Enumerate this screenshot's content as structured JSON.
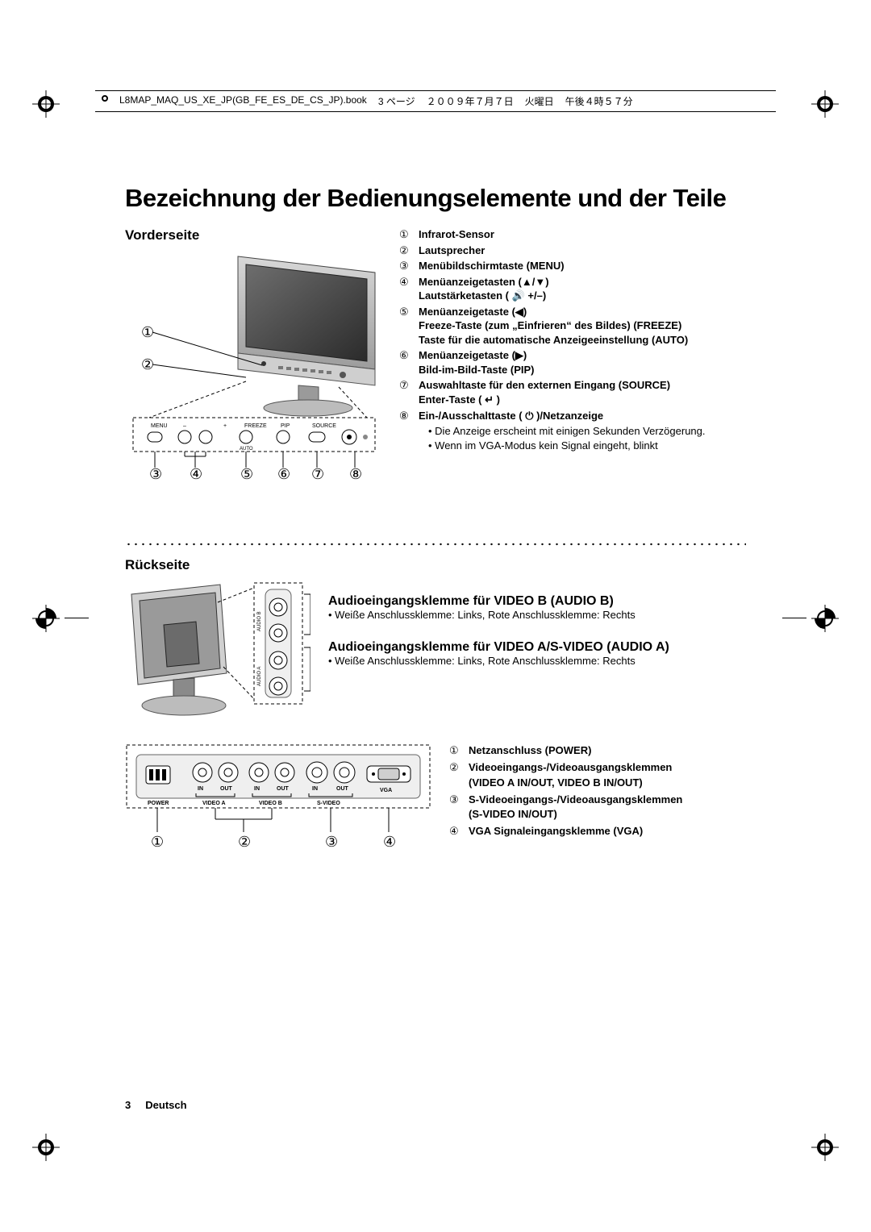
{
  "runhead": {
    "file": "L8MAP_MAQ_US_XE_JP(GB_FE_ES_DE_CS_JP).book",
    "page": "3 ページ",
    "date": "２００９年７月７日",
    "weekday": "火曜日",
    "time": "午後４時５７分"
  },
  "title": "Bezeichnung der Bedienungselemente und der Teile",
  "front": {
    "heading": "Vorderseite",
    "buttons": {
      "menu": "MENU",
      "minus": "–",
      "vol": "",
      "plus": "+",
      "freeze": "FREEZE",
      "pip": "PIP",
      "source": "SOURCE",
      "auto": "AUTO"
    },
    "callout_numbers": [
      "①",
      "②",
      "③",
      "④",
      "⑤",
      "⑥",
      "⑦",
      "⑧"
    ],
    "items": [
      {
        "num": "①",
        "lines": [
          "<b>Infrarot-Sensor</b>"
        ]
      },
      {
        "num": "②",
        "lines": [
          "<b>Lautsprecher</b>"
        ]
      },
      {
        "num": "③",
        "lines": [
          "<b>Menübildschirmtaste (MENU)</b>"
        ]
      },
      {
        "num": "④",
        "lines": [
          "<b>Menüanzeigetasten (▲/▼)</b>",
          "<b>Lautstärketasten ( 🔊 +/–)</b>"
        ]
      },
      {
        "num": "⑤",
        "lines": [
          "<b>Menüanzeigetaste (◀)</b>",
          "<b>Freeze-Taste (zum „Einfrieren“ des Bildes) (FREEZE)</b>",
          "<b>Taste für die automatische Anzeigeeinstellung (AUTO)</b>"
        ]
      },
      {
        "num": "⑥",
        "lines": [
          "<b>Menüanzeigetaste (▶)</b>",
          "<b>Bild-im-Bild-Taste (PIP)</b>"
        ]
      },
      {
        "num": "⑦",
        "lines": [
          "<b>Auswahltaste für den externen Eingang (SOURCE)</b>",
          "<b>Enter-Taste ( ↵ )</b>"
        ]
      },
      {
        "num": "⑧",
        "lines": [
          "<b>Ein-/Ausschalttaste ( ⏻ )/Netzanzeige</b>"
        ]
      }
    ],
    "bullets": [
      "Die Anzeige erscheint mit einigen Sekunden Verzögerung.",
      "Wenn im VGA-Modus kein Signal eingeht, blinkt"
    ]
  },
  "rear": {
    "heading": "Rückseite",
    "audio_b": {
      "title": "Audioeingangsklemme für VIDEO B (AUDIO B)",
      "note": "Weiße Anschlussklemme: Links, Rote Anschlussklemme: Rechts"
    },
    "audio_a": {
      "title": "Audioeingangsklemme für VIDEO A/S-VIDEO (AUDIO A)",
      "note": "Weiße Anschlussklemme: Links, Rote Anschlussklemme: Rechts"
    },
    "panel_labels": {
      "power": "POWER",
      "in": "IN",
      "out": "OUT",
      "videoa": "VIDEO A",
      "videob": "VIDEO B",
      "svideo": "S-VIDEO",
      "vga": "VGA",
      "audio_a": "AUDIO A",
      "audio_b": "AUDIO B"
    },
    "callout_numbers": [
      "①",
      "②",
      "③",
      "④"
    ],
    "items": [
      {
        "num": "①",
        "lines": [
          "<b>Netzanschluss (POWER)</b>"
        ]
      },
      {
        "num": "②",
        "lines": [
          "<b>Videoeingangs-/Videoausgangsklemmen</b>",
          "<b>(VIDEO A IN/OUT, VIDEO B IN/OUT)</b>"
        ]
      },
      {
        "num": "③",
        "lines": [
          "<b>S-Videoeingangs-/Videoausgangsklemmen</b>",
          "<b>(S-VIDEO IN/OUT)</b>"
        ]
      },
      {
        "num": "④",
        "lines": [
          "<b>VGA Signaleingangsklemme (VGA)</b>"
        ]
      }
    ]
  },
  "footer": {
    "page": "3",
    "lang": "Deutsch"
  },
  "colors": {
    "ink": "#000000",
    "paper": "#ffffff",
    "grey1": "#bfbfbf",
    "grey2": "#8a8a8a",
    "grey3": "#5b5b5b"
  }
}
